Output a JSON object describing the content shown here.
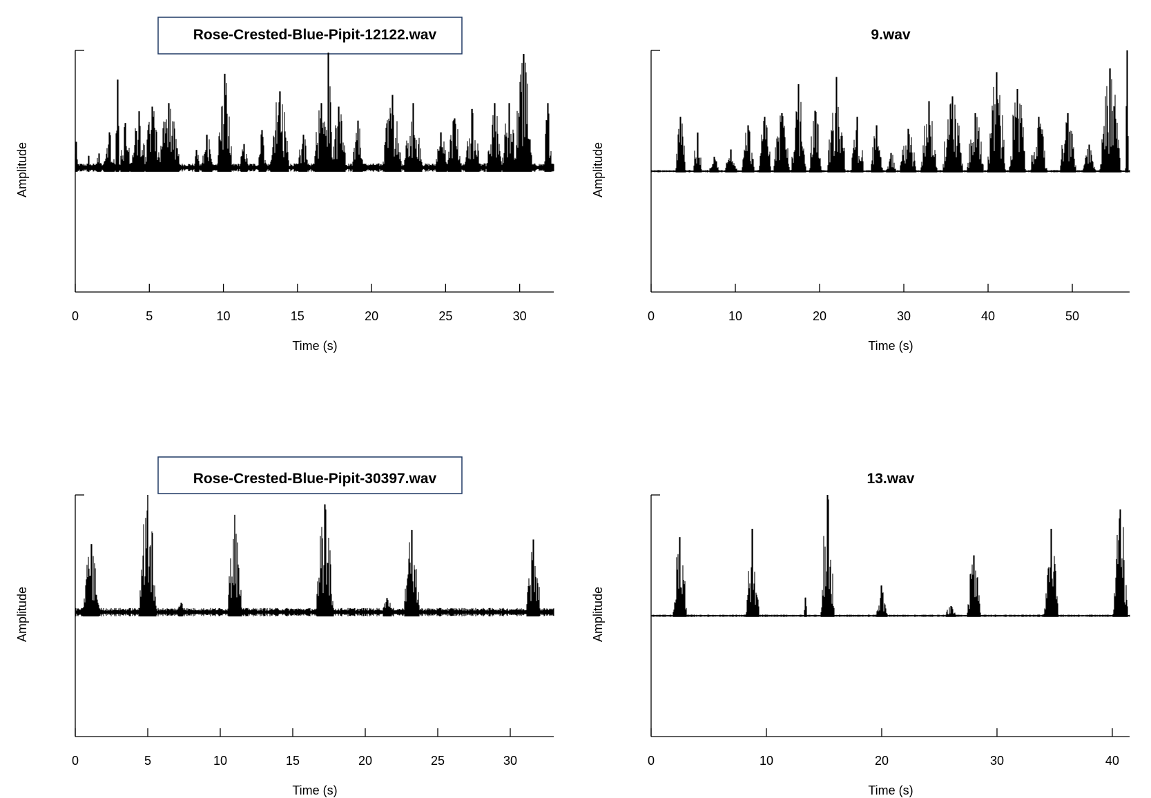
{
  "colors": {
    "ink": "#000000",
    "title_box_border": "#1f3864",
    "background": "#ffffff"
  },
  "chart_data": [
    {
      "type": "area",
      "title": "Rose-Crested-Blue-Pipit-12122.wav",
      "title_boxed": true,
      "xlabel": "Time (s)",
      "ylabel": "Amplitude",
      "xlim": [
        0,
        32.3
      ],
      "ylim": [
        -1,
        1
      ],
      "xticks": [
        0,
        5,
        10,
        15,
        20,
        25,
        30
      ],
      "xtick_labels": [
        "0",
        "5",
        "10",
        "15",
        "20",
        "25",
        "30"
      ],
      "grid": false,
      "noise_level": 0.03,
      "events": [
        [
          0.05,
          0.22,
          0.5
        ],
        [
          0.9,
          0.1,
          0.4
        ],
        [
          1.6,
          0.12,
          0.4
        ],
        [
          2.3,
          0.3,
          0.8
        ],
        [
          2.85,
          0.75,
          0.3
        ],
        [
          3.4,
          0.38,
          0.8
        ],
        [
          4.3,
          0.48,
          1.0
        ],
        [
          5.2,
          0.52,
          1.0
        ],
        [
          6.3,
          0.55,
          1.6
        ],
        [
          8.2,
          0.15,
          0.4
        ],
        [
          8.9,
          0.28,
          0.8
        ],
        [
          10.1,
          0.8,
          1.0
        ],
        [
          11.4,
          0.2,
          0.6
        ],
        [
          12.6,
          0.32,
          0.6
        ],
        [
          13.8,
          0.65,
          1.3
        ],
        [
          15.4,
          0.28,
          0.8
        ],
        [
          16.6,
          0.55,
          1.0
        ],
        [
          17.1,
          0.98,
          0.6
        ],
        [
          17.8,
          0.52,
          1.0
        ],
        [
          19.1,
          0.4,
          0.8
        ],
        [
          21.4,
          0.62,
          1.3
        ],
        [
          22.8,
          0.55,
          1.3
        ],
        [
          24.7,
          0.3,
          0.8
        ],
        [
          25.6,
          0.42,
          1.0
        ],
        [
          26.8,
          0.5,
          1.0
        ],
        [
          28.3,
          0.55,
          1.0
        ],
        [
          29.3,
          0.55,
          1.0
        ],
        [
          30.25,
          0.97,
          1.2
        ],
        [
          31.9,
          0.55,
          0.5
        ]
      ]
    },
    {
      "type": "area",
      "title": "9.wav",
      "title_boxed": false,
      "xlabel": "Time (s)",
      "ylabel": "Amplitude",
      "xlim": [
        0,
        56.8
      ],
      "ylim": [
        -1,
        1
      ],
      "xticks": [
        0,
        10,
        20,
        30,
        40,
        50
      ],
      "xtick_labels": [
        "0",
        "10",
        "20",
        "30",
        "40",
        "50"
      ],
      "grid": false,
      "noise_level": 0.008,
      "events": [
        [
          3.5,
          0.45,
          1.2
        ],
        [
          5.5,
          0.32,
          1.0
        ],
        [
          7.5,
          0.12,
          1.2
        ],
        [
          9.5,
          0.18,
          1.5
        ],
        [
          11.5,
          0.38,
          1.5
        ],
        [
          13.5,
          0.45,
          1.5
        ],
        [
          15.5,
          0.48,
          2.0
        ],
        [
          17.5,
          0.72,
          1.8
        ],
        [
          19.5,
          0.5,
          1.5
        ],
        [
          22.0,
          0.78,
          2.2
        ],
        [
          24.5,
          0.45,
          1.5
        ],
        [
          26.8,
          0.38,
          1.5
        ],
        [
          28.5,
          0.15,
          1.2
        ],
        [
          30.5,
          0.35,
          2.0
        ],
        [
          33.0,
          0.58,
          2.0
        ],
        [
          35.8,
          0.62,
          2.5
        ],
        [
          38.5,
          0.48,
          2.0
        ],
        [
          41.0,
          0.82,
          2.2
        ],
        [
          43.5,
          0.68,
          2.0
        ],
        [
          46.0,
          0.45,
          2.0
        ],
        [
          49.5,
          0.48,
          2.0
        ],
        [
          52.0,
          0.22,
          1.5
        ],
        [
          54.5,
          0.85,
          2.5
        ],
        [
          56.5,
          1.0,
          0.4
        ]
      ]
    },
    {
      "type": "area",
      "title": "Rose-Crested-Blue-Pipit-30397.wav",
      "title_boxed": true,
      "xlabel": "Time (s)",
      "ylabel": "Amplitude",
      "xlim": [
        0,
        33
      ],
      "ylim": [
        -1,
        1
      ],
      "xticks": [
        0,
        5,
        10,
        15,
        20,
        25,
        30
      ],
      "xtick_labels": [
        "0",
        "5",
        "10",
        "15",
        "20",
        "25",
        "30"
      ],
      "grid": false,
      "noise_level": 0.03,
      "events": [
        [
          1.1,
          0.58,
          1.2
        ],
        [
          5.0,
          1.0,
          1.2
        ],
        [
          11.0,
          0.83,
          1.0
        ],
        [
          17.2,
          0.92,
          1.2
        ],
        [
          23.2,
          0.7,
          1.1
        ],
        [
          31.6,
          0.62,
          1.0
        ],
        [
          7.3,
          0.08,
          0.6
        ],
        [
          21.5,
          0.12,
          0.8
        ]
      ]
    },
    {
      "type": "area",
      "title": "13.wav",
      "title_boxed": false,
      "xlabel": "Time (s)",
      "ylabel": "Amplitude",
      "xlim": [
        0,
        41.5
      ],
      "ylim": [
        -1,
        1
      ],
      "xticks": [
        0,
        10,
        20,
        30,
        40
      ],
      "xtick_labels": [
        "0",
        "10",
        "20",
        "30",
        "40"
      ],
      "grid": false,
      "noise_level": 0.008,
      "events": [
        [
          2.5,
          0.65,
          1.2
        ],
        [
          8.8,
          0.72,
          1.2
        ],
        [
          13.4,
          0.15,
          0.3
        ],
        [
          15.3,
          1.0,
          1.2
        ],
        [
          20.0,
          0.25,
          1.0
        ],
        [
          28.0,
          0.5,
          1.2
        ],
        [
          26.0,
          0.08,
          1.0
        ],
        [
          34.7,
          0.72,
          1.3
        ],
        [
          40.7,
          0.88,
          1.3
        ]
      ]
    }
  ]
}
